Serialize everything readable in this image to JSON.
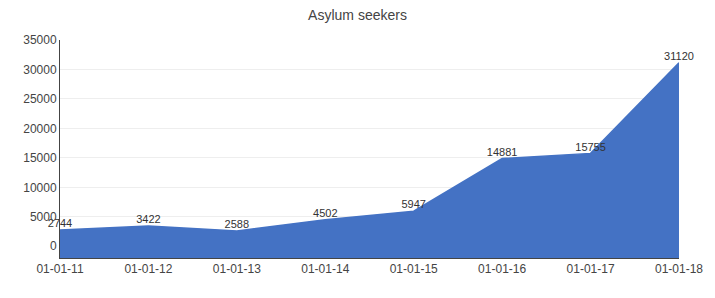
{
  "chart_data": {
    "type": "area",
    "title": "Asylum seekers",
    "categories": [
      "01-01-11",
      "01-01-12",
      "01-01-13",
      "01-01-14",
      "01-01-15",
      "01-01-16",
      "01-01-17",
      "01-01-18"
    ],
    "values": [
      2744,
      3422,
      2588,
      4502,
      5947,
      14881,
      15755,
      31120
    ],
    "color": "#4472C4",
    "ylim": [
      -2000,
      35000
    ],
    "yticks": [
      0,
      5000,
      10000,
      15000,
      20000,
      25000,
      30000,
      35000
    ],
    "grid": true,
    "data_labels": true
  }
}
